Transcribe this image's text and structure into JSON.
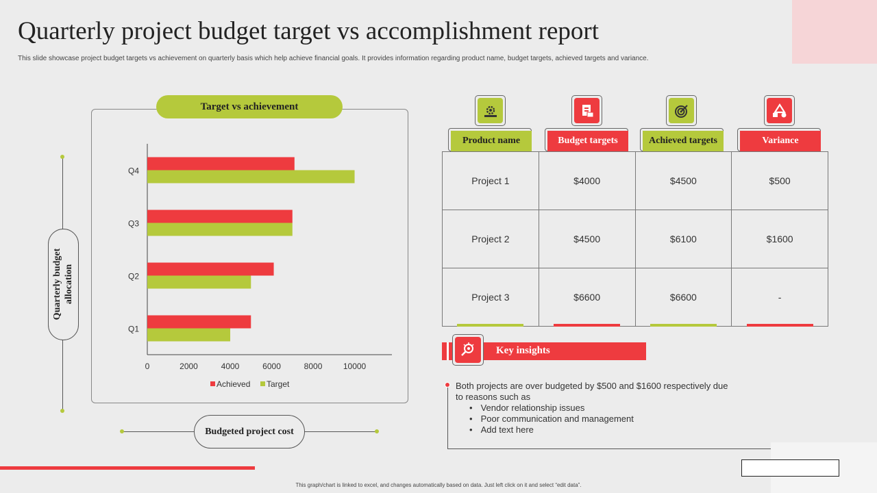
{
  "title": "Quarterly project budget target vs accomplishment report",
  "subtitle": "This slide showcase project budget targets vs achievement on quarterly basis which help achieve financial goals. It provides information regarding product name,  budget targets, achieved targets and variance.",
  "chart_panel": {
    "pill_label": "Target vs achievement",
    "y_axis_pill": "Quarterly budget allocation",
    "x_axis_pill": "Budgeted project cost"
  },
  "chart_data": {
    "type": "bar",
    "orientation": "horizontal",
    "categories": [
      "Q1",
      "Q2",
      "Q3",
      "Q4"
    ],
    "series": [
      {
        "name": "Achieved",
        "color": "#ee3b3f",
        "values": [
          5000,
          6100,
          7000,
          7100
        ]
      },
      {
        "name": "Target",
        "color": "#b5c93c",
        "values": [
          4000,
          5000,
          7000,
          10000
        ]
      }
    ],
    "xticks": [
      0,
      2000,
      4000,
      6000,
      8000,
      10000
    ],
    "xlim": [
      0,
      11800
    ],
    "legend": "bottom"
  },
  "table": {
    "headers": [
      {
        "label": "Product name",
        "style": "green",
        "icon": "gear-settings-icon"
      },
      {
        "label": "Budget targets",
        "style": "red",
        "icon": "budget-document-icon"
      },
      {
        "label": "Achieved targets",
        "style": "green",
        "icon": "target-icon"
      },
      {
        "label": "Variance",
        "style": "red",
        "icon": "shapes-icon"
      }
    ],
    "rows": [
      [
        "Project 1",
        "$4000",
        "$4500",
        "$500"
      ],
      [
        "Project 2",
        "$4500",
        "$6100",
        "$1600"
      ],
      [
        "Project 3",
        "$6600",
        "$6600",
        "-"
      ]
    ]
  },
  "key_insights": {
    "title": "Key insights",
    "icon": "search-insight-icon",
    "line1": "Both projects are over budgeted   by $500 and $1600 respectively due to reasons such as",
    "bullets": [
      "Vendor relationship issues",
      "Poor communication and management",
      "Add text here"
    ]
  },
  "footnote": "This graph/chart is linked to excel, and changes automatically based on data. Just left click on it and select “edit data”.",
  "colors": {
    "accent_red": "#ee3b3f",
    "accent_green": "#b5c93c",
    "background": "#ececec"
  }
}
